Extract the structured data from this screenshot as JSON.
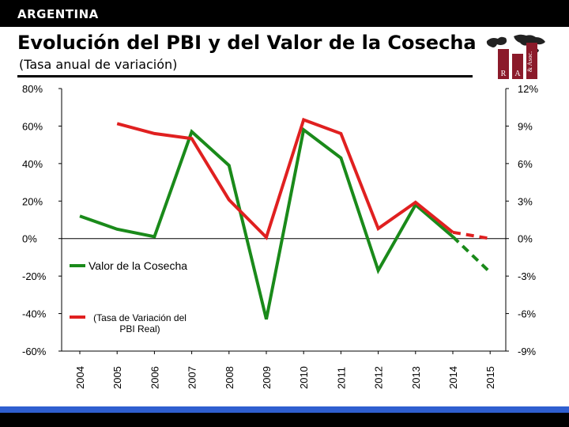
{
  "header": {
    "country": "ARGENTINA",
    "title": "Evolución del PBI y del Valor de la Cosecha",
    "subtitle": "(Tasa anual de variación)"
  },
  "logo": {
    "letters": [
      "R",
      "A",
      "& Asoc."
    ]
  },
  "colors": {
    "harvest": "#1a8a1a",
    "gdp": "#e02020",
    "bar": "#000000",
    "stripe": "#2f5fd0"
  },
  "chart_data": {
    "type": "line",
    "title": "Evolución del PBI y del Valor de la Cosecha",
    "subtitle": "(Tasa anual de variación)",
    "categories": [
      "2004",
      "2005",
      "2006",
      "2007",
      "2008",
      "2009",
      "2010",
      "2011",
      "2012",
      "2013",
      "2014",
      "2015"
    ],
    "y_left": {
      "ticks": [
        "80%",
        "60%",
        "40%",
        "20%",
        "0%",
        "-20%",
        "-40%",
        "-60%"
      ],
      "range": [
        -60,
        80
      ]
    },
    "y_right": {
      "ticks": [
        "12%",
        "9%",
        "6%",
        "3%",
        "0%",
        "-3%",
        "-6%",
        "-9%"
      ],
      "range": [
        -9,
        12
      ]
    },
    "grid": false,
    "series": [
      {
        "name": "Valor de la Cosecha",
        "axis": "left",
        "values": [
          12,
          5,
          1,
          57,
          39,
          -43,
          58,
          43,
          -17,
          18,
          1,
          -18
        ],
        "estimated_from_index": 10
      },
      {
        "name_lines": [
          "(Tasa de Variación del",
          "PBI Real)"
        ],
        "axis": "right",
        "values": [
          null,
          9.2,
          8.4,
          8.0,
          3.1,
          0.1,
          9.5,
          8.4,
          0.8,
          2.9,
          0.5,
          0.0
        ],
        "estimated_from_index": 10
      }
    ]
  }
}
